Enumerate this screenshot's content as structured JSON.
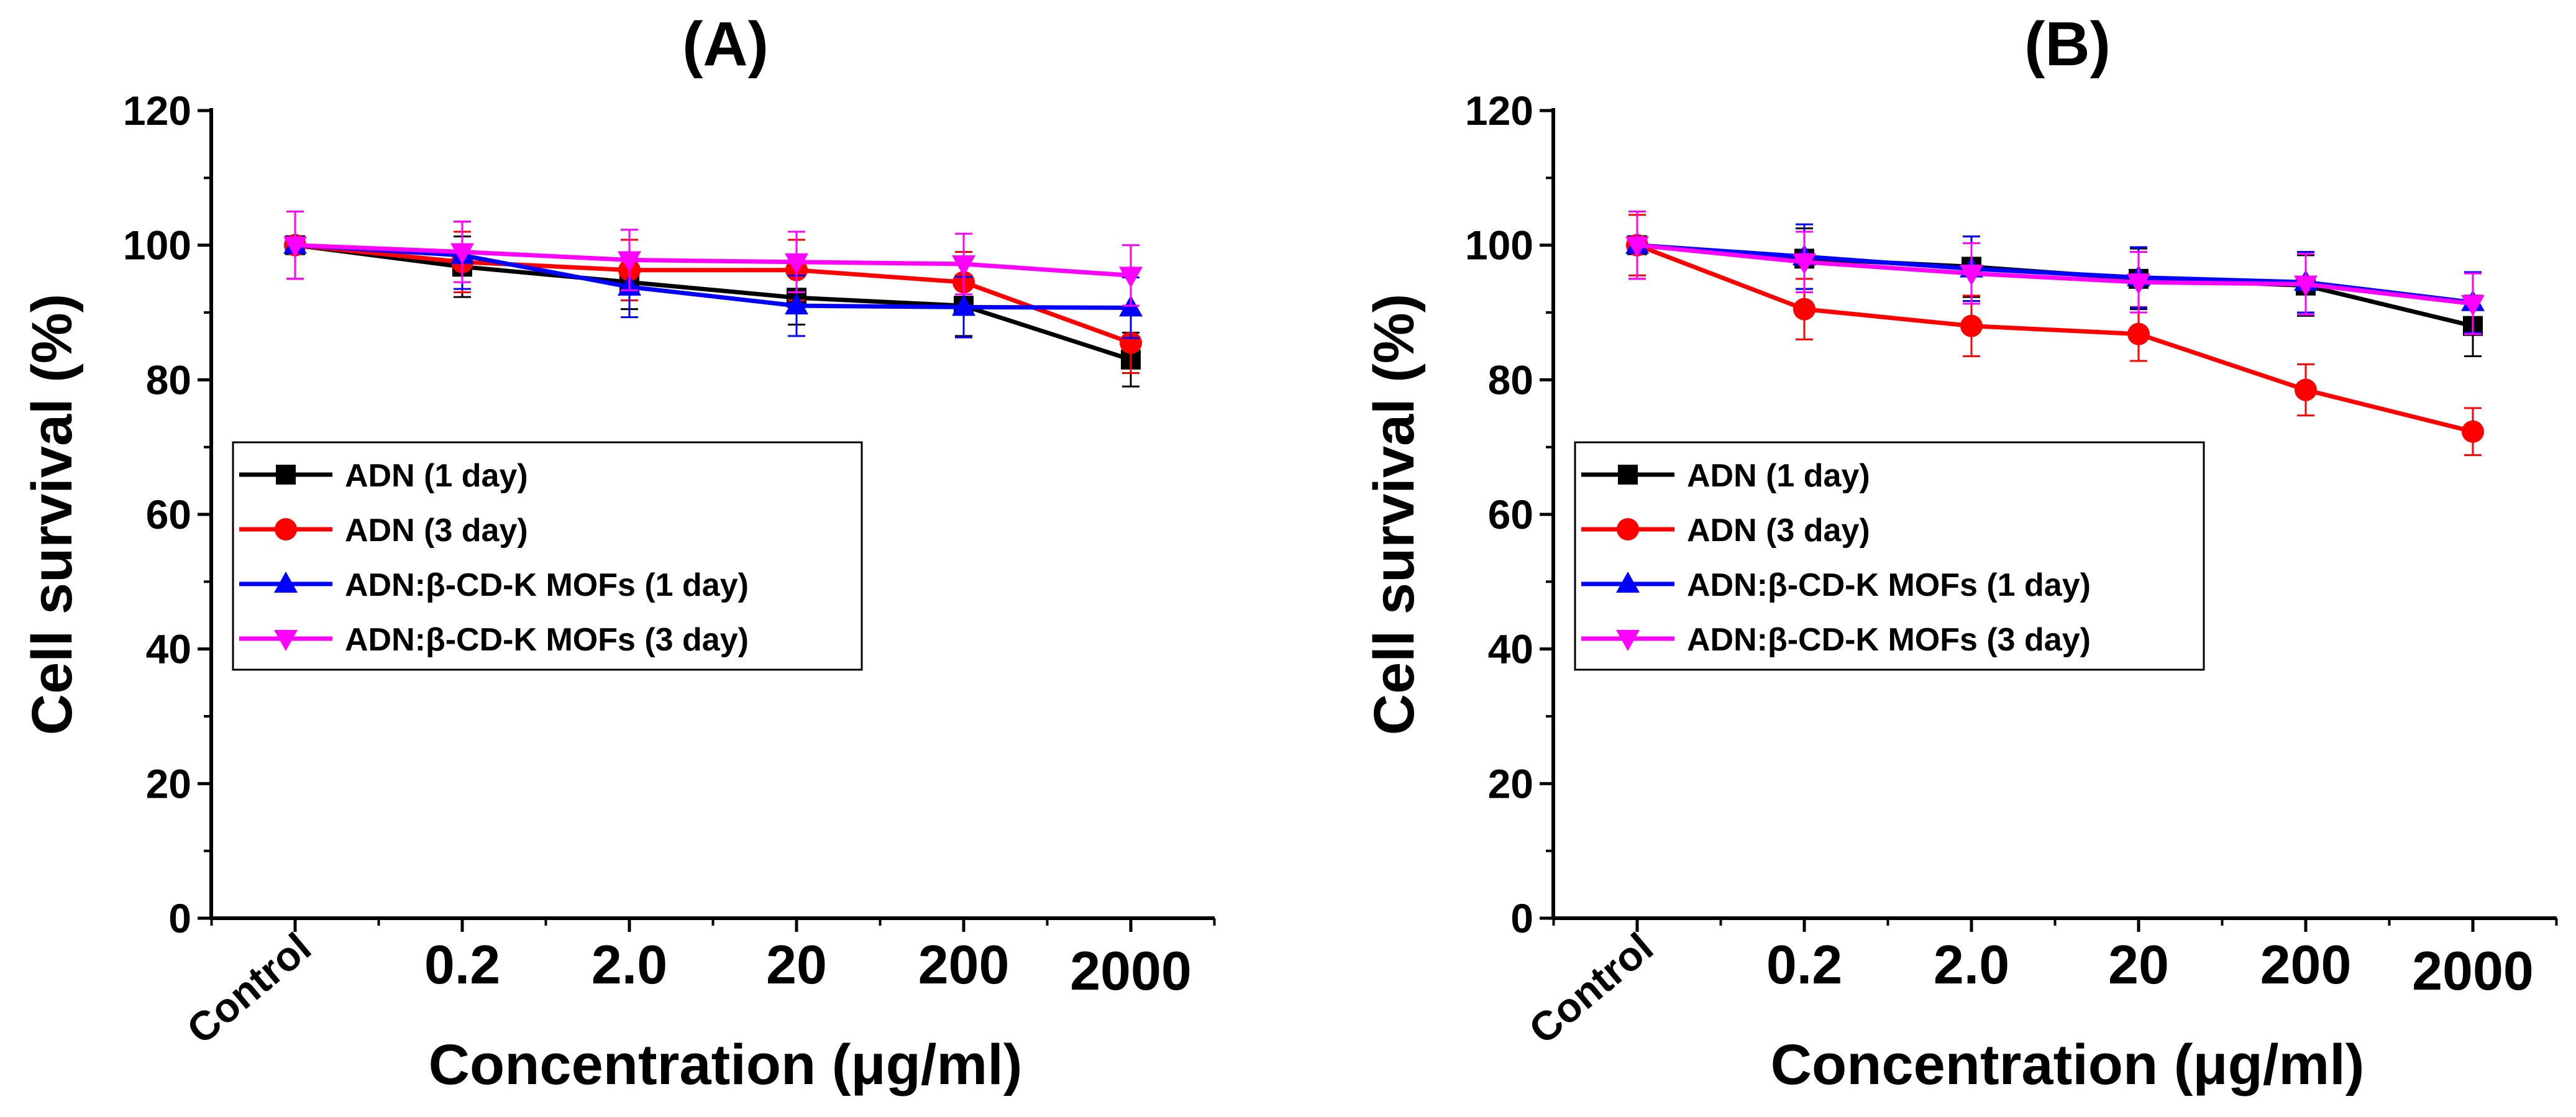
{
  "chart_data": [
    {
      "type": "line",
      "title": "(A)",
      "xlabel": "Concentration (μg/ml)",
      "ylabel": "Cell survival (%)",
      "categories": [
        "Control",
        "0.2",
        "2.0",
        "20",
        "200",
        "2000"
      ],
      "ylim": [
        0,
        120
      ],
      "yticks": [
        "0",
        "20",
        "40",
        "60",
        "80",
        "100",
        "120"
      ],
      "legend_position": "middle-left",
      "series": [
        {
          "name": "ADN (1 day)",
          "color": "#000000",
          "marker": "square",
          "values": [
            100,
            96.8,
            94.5,
            92.2,
            91.0,
            83.0
          ],
          "errors": [
            5,
            4.5,
            4,
            4,
            4.5,
            4
          ]
        },
        {
          "name": "ADN (3 day)",
          "color": "#ff0000",
          "marker": "circle",
          "values": [
            100,
            97.5,
            96.3,
            96.3,
            94.5,
            85.5
          ],
          "errors": [
            5,
            4.5,
            4.5,
            4.5,
            4.5,
            4.5
          ]
        },
        {
          "name": "ADN:β-CD-K MOFs (1 day)",
          "color": "#0000ff",
          "marker": "triangle-up",
          "values": [
            100,
            98.5,
            93.8,
            91.0,
            90.8,
            90.7
          ],
          "errors": [
            5,
            5,
            4.5,
            4.5,
            4.5,
            4.5
          ]
        },
        {
          "name": "ADN:β-CD-K MOFs (3 day)",
          "color": "#ff00ff",
          "marker": "triangle-down",
          "values": [
            100,
            99.0,
            97.8,
            97.5,
            97.2,
            95.5
          ],
          "errors": [
            5,
            4.5,
            4.5,
            4.5,
            4.5,
            4.5
          ]
        }
      ]
    },
    {
      "type": "line",
      "title": "(B)",
      "xlabel": "Concentration (μg/ml)",
      "ylabel": "Cell survival (%)",
      "categories": [
        "Control",
        "0.2",
        "2.0",
        "20",
        "200",
        "2000"
      ],
      "ylim": [
        0,
        120
      ],
      "yticks": [
        "0",
        "20",
        "40",
        "60",
        "80",
        "100",
        "120"
      ],
      "legend_position": "middle-left",
      "series": [
        {
          "name": "ADN (1 day)",
          "color": "#000000",
          "marker": "square",
          "values": [
            100,
            98.0,
            96.8,
            95.0,
            94.0,
            88.0
          ],
          "errors": [
            5,
            4.5,
            4.5,
            4.5,
            4.5,
            4.5
          ]
        },
        {
          "name": "ADN (3 day)",
          "color": "#ff0000",
          "marker": "circle",
          "values": [
            100,
            90.5,
            88.0,
            86.8,
            78.5,
            72.3
          ],
          "errors": [
            4.5,
            4.5,
            4.5,
            4,
            3.8,
            3.5
          ]
        },
        {
          "name": "ADN:β-CD-K MOFs (1 day)",
          "color": "#0000ff",
          "marker": "triangle-up",
          "values": [
            100,
            98.3,
            96.5,
            95.2,
            94.5,
            91.5
          ],
          "errors": [
            5,
            4.8,
            4.8,
            4.5,
            4.5,
            4.5
          ]
        },
        {
          "name": "ADN:β-CD-K MOFs (3 day)",
          "color": "#ff00ff",
          "marker": "triangle-down",
          "values": [
            100,
            97.5,
            95.8,
            94.5,
            94.2,
            91.3
          ],
          "errors": [
            5,
            4.5,
            4.5,
            4.5,
            4.5,
            4.5
          ]
        }
      ]
    }
  ]
}
